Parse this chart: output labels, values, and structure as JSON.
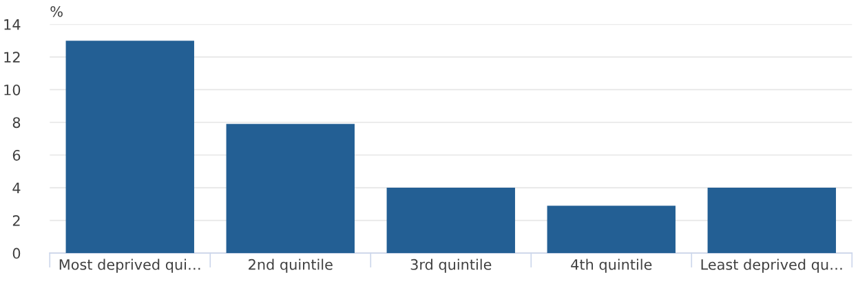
{
  "chart_data": {
    "type": "bar",
    "ylabel": "%",
    "categories": [
      "Most deprived qui…",
      "2nd quintile",
      "3rd quintile",
      "4th quintile",
      "Least deprived qu…"
    ],
    "values": [
      13,
      7.9,
      4,
      2.9,
      4
    ],
    "color": "#235f94",
    "ylim": [
      0,
      14
    ],
    "yticks": [
      0,
      2,
      4,
      6,
      8,
      10,
      12,
      14
    ],
    "grid": "y"
  }
}
